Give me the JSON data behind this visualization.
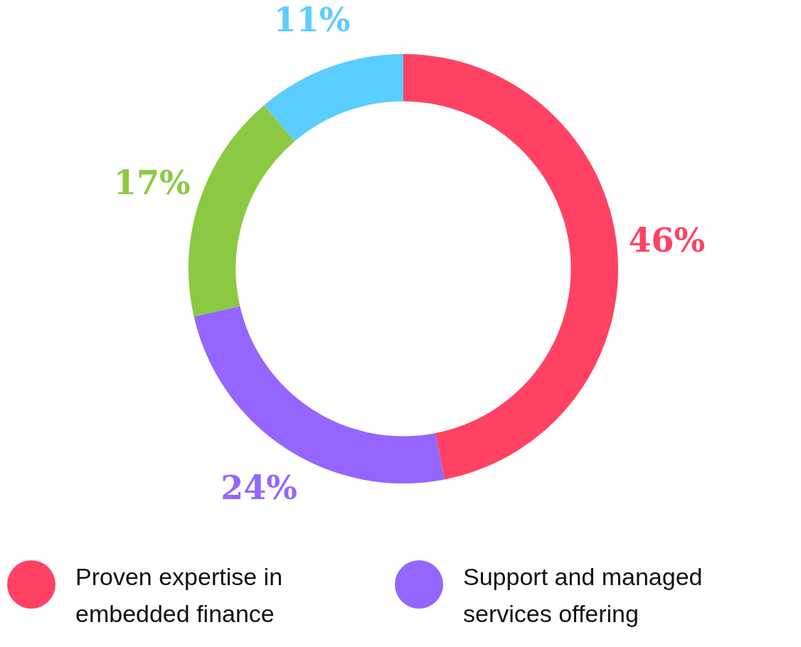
{
  "chart_data": {
    "type": "donut",
    "categories": [
      "Proven expertise in embedded finance",
      "Support and managed services offering",
      null,
      null
    ],
    "values": [
      46,
      24,
      17,
      11
    ],
    "colors": [
      "#ff4263",
      "#9466ff",
      "#8bc943",
      "#5bcdfe"
    ],
    "value_labels": [
      "46%",
      "24%",
      "17%",
      "11%"
    ],
    "legend": "bottom"
  }
}
